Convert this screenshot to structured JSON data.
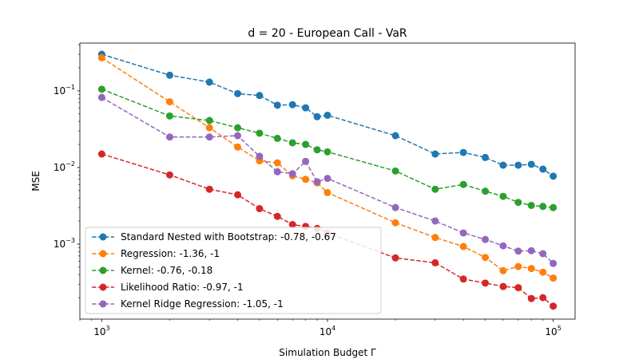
{
  "chart_data": {
    "type": "line",
    "title": "d = 20 - European Call - VaR",
    "xlabel": "Simulation Budget Γ",
    "ylabel": "MSE",
    "xscale": "log",
    "yscale": "log",
    "xlim": [
      800,
      125000
    ],
    "ylim": [
      0.000105,
      0.42
    ],
    "grid": false,
    "legend_position": "lower-left",
    "x_ticks": [
      {
        "value": 1000,
        "base": "10",
        "exp": "3"
      },
      {
        "value": 10000,
        "base": "10",
        "exp": "4"
      },
      {
        "value": 100000,
        "base": "10",
        "exp": "5"
      }
    ],
    "y_ticks": [
      {
        "value": 0.001,
        "base": "10",
        "exp": "−3"
      },
      {
        "value": 0.01,
        "base": "10",
        "exp": "−2"
      },
      {
        "value": 0.1,
        "base": "10",
        "exp": "−1"
      }
    ],
    "x": [
      1000,
      2000,
      3000,
      4000,
      5000,
      6000,
      7000,
      8000,
      9000,
      10000,
      20000,
      30000,
      40000,
      50000,
      60000,
      70000,
      80000,
      90000,
      100000
    ],
    "series": [
      {
        "name": "Standard Nested with Bootstrap: -0.78, -0.67",
        "color": "#1f77b4",
        "values": [
          0.3,
          0.16,
          0.13,
          0.092,
          0.087,
          0.065,
          0.066,
          0.06,
          0.046,
          0.048,
          0.026,
          0.015,
          0.0157,
          0.0135,
          0.0107,
          0.0107,
          0.011,
          0.0095,
          0.0077
        ]
      },
      {
        "name": "Regression: -1.36, -1",
        "color": "#ff7f0e",
        "values": [
          0.27,
          0.072,
          0.033,
          0.0185,
          0.0122,
          0.0115,
          0.0078,
          0.007,
          0.0063,
          0.0047,
          0.0019,
          0.00122,
          0.00093,
          0.00067,
          0.00045,
          0.00051,
          0.00048,
          0.00043,
          0.00036
        ]
      },
      {
        "name": "Kernel: -0.76, -0.18",
        "color": "#2ca02c",
        "values": [
          0.105,
          0.047,
          0.041,
          0.033,
          0.028,
          0.024,
          0.021,
          0.02,
          0.017,
          0.016,
          0.009,
          0.0052,
          0.006,
          0.0049,
          0.0042,
          0.0035,
          0.0032,
          0.0031,
          0.003
        ]
      },
      {
        "name": "Likelihood Ratio: -0.97, -1",
        "color": "#d62728",
        "values": [
          0.015,
          0.008,
          0.0052,
          0.0044,
          0.0029,
          0.0023,
          0.0018,
          0.0017,
          0.0016,
          0.0014,
          0.00066,
          0.00057,
          0.00035,
          0.00031,
          0.00028,
          0.00027,
          0.000195,
          0.0002,
          0.000155
        ]
      },
      {
        "name": "Kernel Ridge Regression: -1.05, -1",
        "color": "#9467bd",
        "values": [
          0.082,
          0.025,
          0.025,
          0.026,
          0.014,
          0.0088,
          0.0083,
          0.012,
          0.0065,
          0.0072,
          0.003,
          0.002,
          0.0014,
          0.00115,
          0.00095,
          0.00081,
          0.00082,
          0.00075,
          0.00056
        ]
      }
    ]
  }
}
